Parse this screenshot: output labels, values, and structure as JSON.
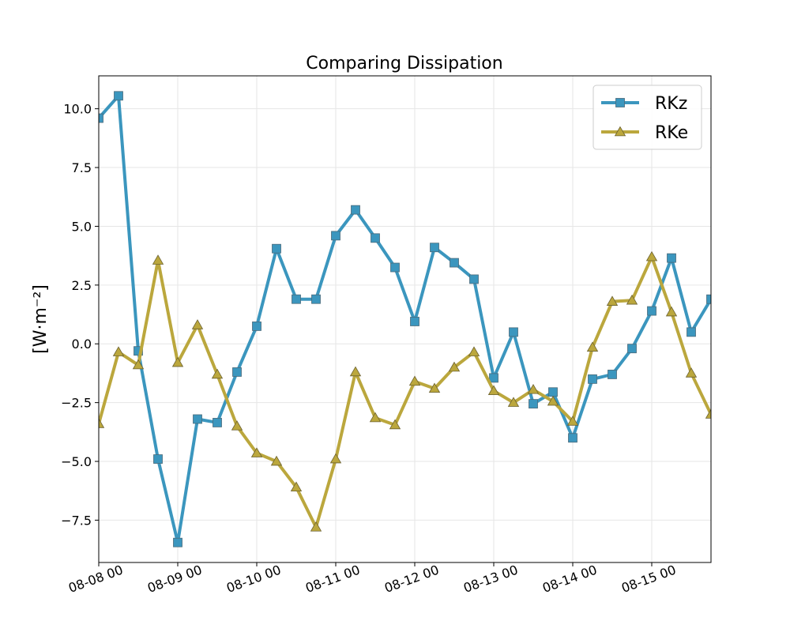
{
  "chart_data": {
    "type": "line",
    "title": "Comparing Dissipation",
    "ylabel": "[W·m⁻²]",
    "xlabel": "",
    "x_unit": "datetime",
    "xlim": [
      "08-08 00:00",
      "08-15 18:00"
    ],
    "ylim": [
      -9.3,
      11.4
    ],
    "x_ticks": [
      "08-08 00",
      "08-09 00",
      "08-10 00",
      "08-11 00",
      "08-12 00",
      "08-13 00",
      "08-14 00",
      "08-15 00"
    ],
    "y_ticks": [
      -7.5,
      -5.0,
      -2.5,
      0.0,
      2.5,
      5.0,
      7.5,
      10.0
    ],
    "y_tick_labels": [
      "−7.5",
      "−5.0",
      "−2.5",
      "0.0",
      "2.5",
      "5.0",
      "7.5",
      "10.0"
    ],
    "grid": true,
    "legend_position": "top-right",
    "x": [
      "08-08 00:00",
      "08-08 06:00",
      "08-08 12:00",
      "08-08 18:00",
      "08-09 00:00",
      "08-09 06:00",
      "08-09 12:00",
      "08-09 18:00",
      "08-10 00:00",
      "08-10 06:00",
      "08-10 12:00",
      "08-10 18:00",
      "08-11 00:00",
      "08-11 06:00",
      "08-11 12:00",
      "08-11 18:00",
      "08-12 00:00",
      "08-12 06:00",
      "08-12 12:00",
      "08-12 18:00",
      "08-13 00:00",
      "08-13 06:00",
      "08-13 12:00",
      "08-13 18:00",
      "08-14 00:00",
      "08-14 06:00",
      "08-14 12:00",
      "08-14 18:00",
      "08-15 00:00",
      "08-15 06:00",
      "08-15 12:00",
      "08-15 18:00"
    ],
    "series": [
      {
        "name": "RKz",
        "color": "#3b96be",
        "marker": "square",
        "values": [
          9.6,
          10.55,
          -0.3,
          -4.9,
          -8.45,
          -3.2,
          -3.35,
          -1.2,
          0.75,
          4.05,
          1.9,
          1.9,
          4.6,
          5.7,
          4.5,
          3.25,
          0.95,
          4.1,
          3.45,
          2.75,
          -1.45,
          0.5,
          -2.55,
          -2.05,
          -4.0,
          -1.5,
          -1.3,
          -0.2,
          1.4,
          3.65,
          0.5,
          1.9
        ]
      },
      {
        "name": "RKe",
        "color": "#bba73d",
        "marker": "triangle",
        "values": [
          -3.4,
          -0.35,
          -0.9,
          3.55,
          -0.8,
          0.8,
          -1.3,
          -3.5,
          -4.65,
          -5.0,
          -6.1,
          -7.8,
          -4.9,
          -1.2,
          -3.15,
          -3.45,
          -1.6,
          -1.9,
          -1.0,
          -0.35,
          -2.0,
          -2.5,
          -1.95,
          -2.45,
          -3.3,
          -0.15,
          1.8,
          1.85,
          3.7,
          1.35,
          -1.25,
          -3.0
        ]
      }
    ]
  }
}
